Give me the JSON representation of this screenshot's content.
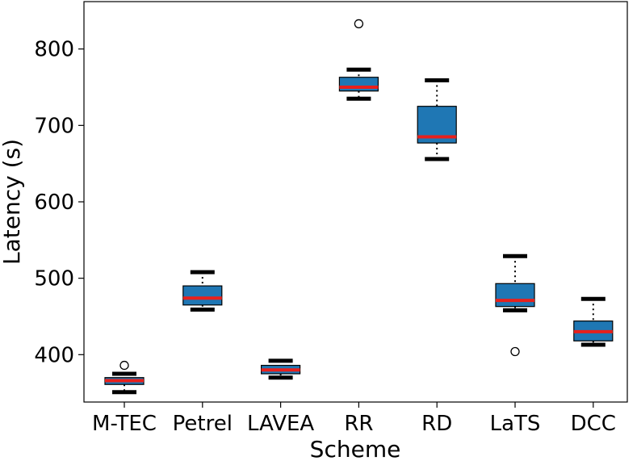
{
  "chart_data": {
    "type": "box",
    "xlabel": "Scheme",
    "ylabel": "Latency (s)",
    "ylim": [
      338,
      862
    ],
    "yticks": [
      400,
      500,
      600,
      700,
      800
    ],
    "grid": false,
    "colors": {
      "box_fill": "#1f77b4",
      "median": "#e8201c",
      "whisker": "#000000"
    },
    "categories": [
      "M-TEC",
      "Petrel",
      "LAVEA",
      "RR",
      "RD",
      "LaTS",
      "DCC"
    ],
    "boxes": [
      {
        "name": "M-TEC",
        "whislo": 351,
        "q1": 361,
        "med": 366,
        "q3": 370,
        "whishi": 375,
        "fliers": [
          386
        ]
      },
      {
        "name": "Petrel",
        "whislo": 459,
        "q1": 465,
        "med": 474,
        "q3": 490,
        "whishi": 508,
        "fliers": []
      },
      {
        "name": "LAVEA",
        "whislo": 370,
        "q1": 375,
        "med": 380,
        "q3": 386,
        "whishi": 392,
        "fliers": []
      },
      {
        "name": "RR",
        "whislo": 735,
        "q1": 745,
        "med": 750,
        "q3": 763,
        "whishi": 773,
        "fliers": [
          833
        ]
      },
      {
        "name": "RD",
        "whislo": 656,
        "q1": 677,
        "med": 685,
        "q3": 725,
        "whishi": 759,
        "fliers": []
      },
      {
        "name": "LaTS",
        "whislo": 458,
        "q1": 463,
        "med": 471,
        "q3": 493,
        "whishi": 529,
        "fliers": [
          404
        ]
      },
      {
        "name": "DCC",
        "whislo": 413,
        "q1": 418,
        "med": 430,
        "q3": 444,
        "whishi": 473,
        "fliers": []
      }
    ]
  }
}
